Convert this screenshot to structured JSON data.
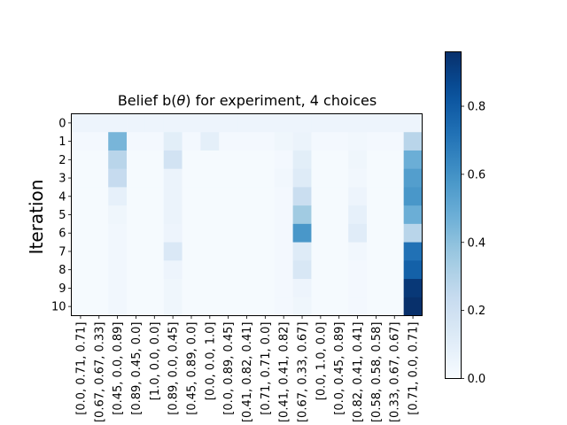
{
  "chart_data": {
    "type": "heatmap",
    "title": "Belief b(θ) for experiment, 4 choices",
    "ylabel": "Iteration",
    "xlabel": "",
    "y_categories": [
      "0",
      "1",
      "2",
      "3",
      "4",
      "5",
      "6",
      "7",
      "8",
      "9",
      "10"
    ],
    "x_categories": [
      "[0.0, 0.71, 0.71]",
      "[0.67, 0.67, 0.33]",
      "[0.45, 0.0, 0.89]",
      "[0.89, 0.45, 0.0]",
      "[1.0, 0.0, 0.0]",
      "[0.89, 0.0, 0.45]",
      "[0.45, 0.89, 0.0]",
      "[0.0, 0.0, 1.0]",
      "[0.0, 0.89, 0.45]",
      "[0.41, 0.82, 0.41]",
      "[0.71, 0.71, 0.0]",
      "[0.41, 0.41, 0.82]",
      "[0.67, 0.33, 0.67]",
      "[0.0, 1.0, 0.0]",
      "[0.0, 0.45, 0.89]",
      "[0.82, 0.41, 0.41]",
      "[0.58, 0.58, 0.58]",
      "[0.33, 0.67, 0.67]",
      "[0.71, 0.0, 0.71]"
    ],
    "values": [
      [
        0.05,
        0.05,
        0.05,
        0.05,
        0.05,
        0.05,
        0.05,
        0.05,
        0.05,
        0.05,
        0.05,
        0.05,
        0.05,
        0.05,
        0.05,
        0.05,
        0.05,
        0.05,
        0.05
      ],
      [
        0.02,
        0.02,
        0.45,
        0.02,
        0.02,
        0.1,
        0.02,
        0.09,
        0.02,
        0.02,
        0.02,
        0.04,
        0.06,
        0.02,
        0.02,
        0.03,
        0.02,
        0.02,
        0.28
      ],
      [
        0.01,
        0.01,
        0.28,
        0.01,
        0.01,
        0.18,
        0.01,
        0.01,
        0.01,
        0.01,
        0.01,
        0.02,
        0.1,
        0.01,
        0.01,
        0.04,
        0.01,
        0.01,
        0.48
      ],
      [
        0.01,
        0.01,
        0.24,
        0.01,
        0.01,
        0.06,
        0.01,
        0.01,
        0.01,
        0.01,
        0.01,
        0.03,
        0.12,
        0.01,
        0.01,
        0.03,
        0.01,
        0.01,
        0.55
      ],
      [
        0.01,
        0.01,
        0.08,
        0.01,
        0.01,
        0.06,
        0.01,
        0.01,
        0.01,
        0.01,
        0.01,
        0.02,
        0.22,
        0.01,
        0.01,
        0.05,
        0.01,
        0.01,
        0.58
      ],
      [
        0.01,
        0.01,
        0.04,
        0.01,
        0.01,
        0.06,
        0.01,
        0.01,
        0.01,
        0.01,
        0.01,
        0.02,
        0.35,
        0.01,
        0.01,
        0.08,
        0.01,
        0.01,
        0.48
      ],
      [
        0.01,
        0.01,
        0.03,
        0.01,
        0.01,
        0.05,
        0.01,
        0.01,
        0.01,
        0.01,
        0.01,
        0.02,
        0.58,
        0.01,
        0.01,
        0.11,
        0.01,
        0.01,
        0.28
      ],
      [
        0.01,
        0.01,
        0.03,
        0.01,
        0.01,
        0.14,
        0.01,
        0.01,
        0.01,
        0.01,
        0.01,
        0.02,
        0.12,
        0.01,
        0.01,
        0.03,
        0.01,
        0.01,
        0.72
      ],
      [
        0.01,
        0.01,
        0.03,
        0.01,
        0.01,
        0.05,
        0.01,
        0.01,
        0.01,
        0.01,
        0.01,
        0.02,
        0.15,
        0.01,
        0.01,
        0.02,
        0.01,
        0.01,
        0.78
      ],
      [
        0.01,
        0.01,
        0.03,
        0.01,
        0.01,
        0.04,
        0.01,
        0.01,
        0.01,
        0.01,
        0.01,
        0.02,
        0.05,
        0.01,
        0.01,
        0.02,
        0.01,
        0.01,
        0.93
      ],
      [
        0.01,
        0.01,
        0.03,
        0.01,
        0.01,
        0.04,
        0.01,
        0.01,
        0.01,
        0.01,
        0.01,
        0.02,
        0.04,
        0.01,
        0.01,
        0.02,
        0.01,
        0.01,
        0.96
      ]
    ],
    "colormap": "Blues",
    "vmin": 0.0,
    "vmax": 0.96,
    "colorbar_ticks": [
      "0.0",
      "0.2",
      "0.4",
      "0.6",
      "0.8"
    ],
    "colorbar_tick_values": [
      0.0,
      0.2,
      0.4,
      0.6,
      0.8
    ],
    "grid": false,
    "legend": "none"
  }
}
